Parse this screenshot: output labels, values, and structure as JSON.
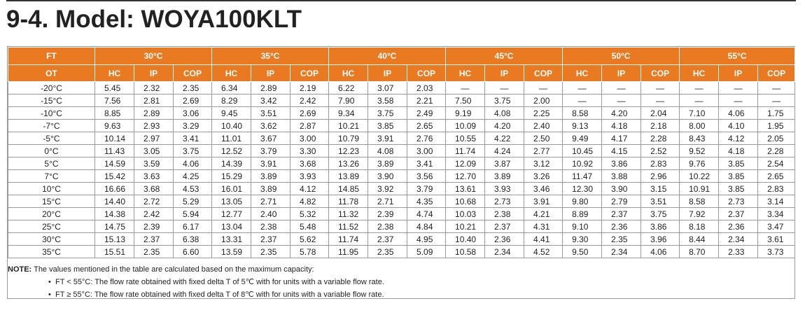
{
  "title": "9-4. Model: WOYA100KLT",
  "table": {
    "ft_label": "FT",
    "ot_label": "OT",
    "ft_groups": [
      "30°C",
      "35°C",
      "40°C",
      "45°C",
      "50°C",
      "55°C"
    ],
    "sub_headers": [
      "HC",
      "IP",
      "COP"
    ],
    "rows": [
      {
        "ot": "-20°C",
        "v": [
          "5.45",
          "2.32",
          "2.35",
          "6.34",
          "2.89",
          "2.19",
          "6.22",
          "3.07",
          "2.03",
          "—",
          "—",
          "—",
          "—",
          "—",
          "—",
          "—",
          "—",
          "—"
        ]
      },
      {
        "ot": "-15°C",
        "v": [
          "7.56",
          "2.81",
          "2.69",
          "8.29",
          "3.42",
          "2.42",
          "7.90",
          "3.58",
          "2.21",
          "7.50",
          "3.75",
          "2.00",
          "—",
          "—",
          "—",
          "—",
          "—",
          "—"
        ]
      },
      {
        "ot": "-10°C",
        "v": [
          "8.85",
          "2.89",
          "3.06",
          "9.45",
          "3.51",
          "2.69",
          "9.34",
          "3.75",
          "2.49",
          "9.19",
          "4.08",
          "2.25",
          "8.58",
          "4.20",
          "2.04",
          "7.10",
          "4.06",
          "1.75"
        ]
      },
      {
        "ot": "-7°C",
        "v": [
          "9.63",
          "2.93",
          "3.29",
          "10.40",
          "3.62",
          "2.87",
          "10.21",
          "3.85",
          "2.65",
          "10.09",
          "4.20",
          "2.40",
          "9.13",
          "4.18",
          "2.18",
          "8.00",
          "4.10",
          "1.95"
        ]
      },
      {
        "ot": "-5°C",
        "v": [
          "10.14",
          "2.97",
          "3.41",
          "11.01",
          "3.67",
          "3.00",
          "10.79",
          "3.91",
          "2.76",
          "10.55",
          "4.22",
          "2.50",
          "9.49",
          "4.17",
          "2.28",
          "8.43",
          "4.12",
          "2.05"
        ]
      },
      {
        "ot": "0°C",
        "v": [
          "11.43",
          "3.05",
          "3.75",
          "12.52",
          "3.79",
          "3.30",
          "12.23",
          "4.08",
          "3.00",
          "11.74",
          "4.24",
          "2.77",
          "10.45",
          "4.15",
          "2.52",
          "9.52",
          "4.18",
          "2.28"
        ]
      },
      {
        "ot": "5°C",
        "v": [
          "14.59",
          "3.59",
          "4.06",
          "14.39",
          "3.91",
          "3.68",
          "13.26",
          "3.89",
          "3.41",
          "12.09",
          "3.87",
          "3.12",
          "10.92",
          "3.86",
          "2.83",
          "9.76",
          "3.85",
          "2.54"
        ]
      },
      {
        "ot": "7°C",
        "v": [
          "15.42",
          "3.63",
          "4.25",
          "15.29",
          "3.89",
          "3.93",
          "13.89",
          "3.90",
          "3.56",
          "12.70",
          "3.89",
          "3.26",
          "11.47",
          "3.88",
          "2.96",
          "10.22",
          "3.85",
          "2.65"
        ]
      },
      {
        "ot": "10°C",
        "v": [
          "16.66",
          "3.68",
          "4.53",
          "16.01",
          "3.89",
          "4.12",
          "14.85",
          "3.92",
          "3.79",
          "13.61",
          "3.93",
          "3.46",
          "12.30",
          "3.90",
          "3.15",
          "10.91",
          "3.85",
          "2.83"
        ]
      },
      {
        "ot": "15°C",
        "v": [
          "14.40",
          "2.72",
          "5.29",
          "13.05",
          "2.71",
          "4.82",
          "11.78",
          "2.71",
          "4.35",
          "10.68",
          "2.73",
          "3.91",
          "9.80",
          "2.79",
          "3.51",
          "8.58",
          "2.73",
          "3.14"
        ]
      },
      {
        "ot": "20°C",
        "v": [
          "14.38",
          "2.42",
          "5.94",
          "12.77",
          "2.40",
          "5.32",
          "11.32",
          "2.39",
          "4.74",
          "10.03",
          "2.38",
          "4.21",
          "8.89",
          "2.37",
          "3.75",
          "7.92",
          "2.37",
          "3.34"
        ]
      },
      {
        "ot": "25°C",
        "v": [
          "14.75",
          "2.39",
          "6.17",
          "13.04",
          "2.38",
          "5.48",
          "11.52",
          "2.38",
          "4.84",
          "10.21",
          "2.37",
          "4.31",
          "9.10",
          "2.36",
          "3.86",
          "8.18",
          "2.36",
          "3.47"
        ]
      },
      {
        "ot": "30°C",
        "v": [
          "15.13",
          "2.37",
          "6.38",
          "13.31",
          "2.37",
          "5.62",
          "11.74",
          "2.37",
          "4.95",
          "10.40",
          "2.36",
          "4.41",
          "9.30",
          "2.35",
          "3.96",
          "8.44",
          "2.34",
          "3.61"
        ]
      },
      {
        "ot": "35°C",
        "v": [
          "15.51",
          "2.35",
          "6.60",
          "13.59",
          "2.35",
          "5.78",
          "11.95",
          "2.35",
          "5.09",
          "10.58",
          "2.34",
          "4.52",
          "9.50",
          "2.34",
          "4.06",
          "8.70",
          "2.33",
          "3.73"
        ]
      }
    ]
  },
  "note": {
    "label": "NOTE:",
    "text": "The values mentioned in the table are calculated based on the maximum capacity:",
    "bullets": [
      "FT < 55°C: The flow rate obtained with fixed delta T of 5℃ with for units with a variable flow rate.",
      "FT ≥ 55°C: The flow rate obtained with fixed delta T of 8℃ with for units with a variable flow rate."
    ]
  },
  "colors": {
    "header_bg": "#ea7a21",
    "header_text": "#ffffff",
    "grid_line": "#9a9a9a"
  }
}
